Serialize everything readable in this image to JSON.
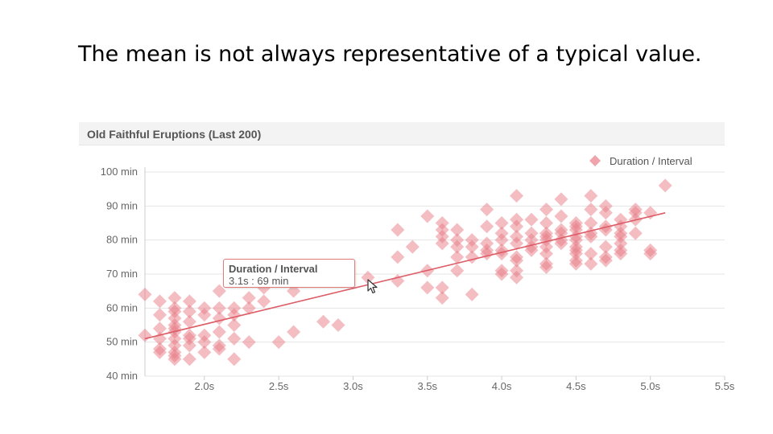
{
  "slide": {
    "title": "The mean is not always representative of a typical value."
  },
  "chart_data": {
    "type": "scatter",
    "title": "Old Faithful Eruptions (Last 200)",
    "xlabel": "",
    "ylabel": "",
    "xlim": [
      1.6,
      5.5
    ],
    "ylim": [
      40,
      100
    ],
    "x_ticks": [
      "2.0s",
      "2.5s",
      "3.0s",
      "3.5s",
      "4.0s",
      "4.5s",
      "5.0s",
      "5.5s"
    ],
    "y_ticks": [
      "40 min",
      "50 min",
      "60 min",
      "70 min",
      "80 min",
      "90 min",
      "100 min"
    ],
    "x_tick_values": [
      2.0,
      2.5,
      3.0,
      3.5,
      4.0,
      4.5,
      5.0,
      5.5
    ],
    "y_tick_values": [
      40,
      50,
      60,
      70,
      80,
      90,
      100
    ],
    "grid": true,
    "legend_position": "top-right",
    "marker_color": "#e87c86",
    "line_color": "#dd5c66",
    "series": [
      {
        "name": "Duration / Interval",
        "points": [
          [
            1.6,
            64
          ],
          [
            1.6,
            52
          ],
          [
            1.7,
            62
          ],
          [
            1.7,
            58
          ],
          [
            1.7,
            54
          ],
          [
            1.7,
            51
          ],
          [
            1.7,
            48
          ],
          [
            1.7,
            47
          ],
          [
            1.8,
            63
          ],
          [
            1.8,
            60
          ],
          [
            1.8,
            59
          ],
          [
            1.8,
            57
          ],
          [
            1.8,
            55
          ],
          [
            1.8,
            54
          ],
          [
            1.8,
            53
          ],
          [
            1.8,
            51
          ],
          [
            1.8,
            49
          ],
          [
            1.8,
            47
          ],
          [
            1.8,
            46
          ],
          [
            1.8,
            45
          ],
          [
            1.9,
            62
          ],
          [
            1.9,
            59
          ],
          [
            1.9,
            56
          ],
          [
            1.9,
            52
          ],
          [
            1.9,
            51
          ],
          [
            1.9,
            49
          ],
          [
            1.9,
            45
          ],
          [
            2.0,
            60
          ],
          [
            2.0,
            58
          ],
          [
            2.0,
            52
          ],
          [
            2.0,
            50
          ],
          [
            2.0,
            47
          ],
          [
            2.1,
            65
          ],
          [
            2.1,
            60
          ],
          [
            2.1,
            57
          ],
          [
            2.1,
            53
          ],
          [
            2.1,
            49
          ],
          [
            2.1,
            48
          ],
          [
            2.2,
            60
          ],
          [
            2.2,
            58
          ],
          [
            2.2,
            55
          ],
          [
            2.2,
            51
          ],
          [
            2.2,
            45
          ],
          [
            2.3,
            63
          ],
          [
            2.3,
            60
          ],
          [
            2.3,
            50
          ],
          [
            2.4,
            66
          ],
          [
            2.4,
            62
          ],
          [
            2.5,
            50
          ],
          [
            2.6,
            65
          ],
          [
            2.6,
            53
          ],
          [
            2.8,
            56
          ],
          [
            2.9,
            55
          ],
          [
            3.1,
            69
          ],
          [
            3.3,
            83
          ],
          [
            3.3,
            75
          ],
          [
            3.3,
            68
          ],
          [
            3.4,
            78
          ],
          [
            3.5,
            87
          ],
          [
            3.5,
            71
          ],
          [
            3.5,
            66
          ],
          [
            3.6,
            85
          ],
          [
            3.6,
            83
          ],
          [
            3.6,
            81
          ],
          [
            3.6,
            79
          ],
          [
            3.6,
            66
          ],
          [
            3.6,
            63
          ],
          [
            3.7,
            83
          ],
          [
            3.7,
            80
          ],
          [
            3.7,
            78
          ],
          [
            3.7,
            75
          ],
          [
            3.7,
            71
          ],
          [
            3.8,
            80
          ],
          [
            3.8,
            78
          ],
          [
            3.8,
            75
          ],
          [
            3.8,
            64
          ],
          [
            3.9,
            89
          ],
          [
            3.9,
            84
          ],
          [
            3.9,
            79
          ],
          [
            3.9,
            77
          ],
          [
            3.9,
            76
          ],
          [
            4.0,
            85
          ],
          [
            4.0,
            82
          ],
          [
            4.0,
            80
          ],
          [
            4.0,
            77
          ],
          [
            4.0,
            76
          ],
          [
            4.0,
            71
          ],
          [
            4.0,
            70
          ],
          [
            4.1,
            93
          ],
          [
            4.1,
            86
          ],
          [
            4.1,
            84
          ],
          [
            4.1,
            81
          ],
          [
            4.1,
            79
          ],
          [
            4.1,
            75
          ],
          [
            4.1,
            74
          ],
          [
            4.1,
            71
          ],
          [
            4.1,
            69
          ],
          [
            4.2,
            86
          ],
          [
            4.2,
            82
          ],
          [
            4.2,
            80
          ],
          [
            4.2,
            78
          ],
          [
            4.2,
            77
          ],
          [
            4.3,
            89
          ],
          [
            4.3,
            85
          ],
          [
            4.3,
            82
          ],
          [
            4.3,
            81
          ],
          [
            4.3,
            80
          ],
          [
            4.3,
            78
          ],
          [
            4.3,
            76
          ],
          [
            4.3,
            73
          ],
          [
            4.3,
            72
          ],
          [
            4.4,
            92
          ],
          [
            4.4,
            87
          ],
          [
            4.4,
            83
          ],
          [
            4.4,
            82
          ],
          [
            4.4,
            80
          ],
          [
            4.4,
            79
          ],
          [
            4.5,
            85
          ],
          [
            4.5,
            84
          ],
          [
            4.5,
            83
          ],
          [
            4.5,
            81
          ],
          [
            4.5,
            80
          ],
          [
            4.5,
            78
          ],
          [
            4.5,
            77
          ],
          [
            4.5,
            76
          ],
          [
            4.5,
            74
          ],
          [
            4.5,
            73
          ],
          [
            4.6,
            93
          ],
          [
            4.6,
            89
          ],
          [
            4.6,
            85
          ],
          [
            4.6,
            82
          ],
          [
            4.6,
            81
          ],
          [
            4.6,
            76
          ],
          [
            4.6,
            73
          ],
          [
            4.7,
            90
          ],
          [
            4.7,
            88
          ],
          [
            4.7,
            84
          ],
          [
            4.7,
            83
          ],
          [
            4.7,
            78
          ],
          [
            4.7,
            75
          ],
          [
            4.7,
            74
          ],
          [
            4.8,
            86
          ],
          [
            4.8,
            84
          ],
          [
            4.8,
            82
          ],
          [
            4.8,
            81
          ],
          [
            4.8,
            79
          ],
          [
            4.8,
            77
          ],
          [
            4.8,
            76
          ],
          [
            4.9,
            89
          ],
          [
            4.9,
            88
          ],
          [
            4.9,
            86
          ],
          [
            4.9,
            82
          ],
          [
            5.0,
            88
          ],
          [
            5.0,
            77
          ],
          [
            5.0,
            76
          ],
          [
            5.1,
            96
          ]
        ]
      }
    ],
    "trendline": {
      "x": [
        1.6,
        5.1
      ],
      "y": [
        51,
        88
      ]
    },
    "tooltip": {
      "title": "Duration / Interval",
      "value": "3.1s : 69 min"
    }
  }
}
